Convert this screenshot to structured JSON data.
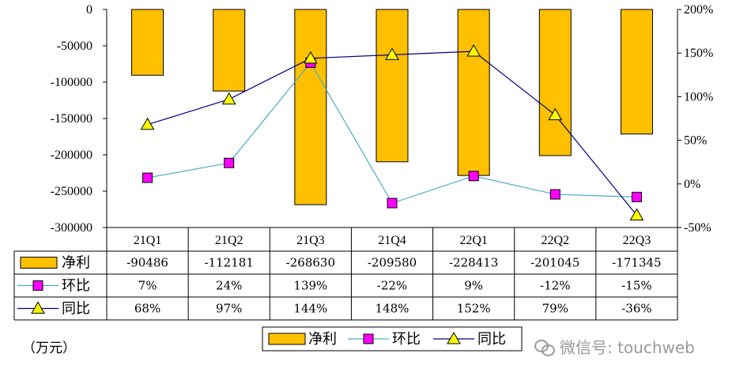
{
  "chart_data": {
    "type": "bar",
    "categories": [
      "21Q1",
      "21Q2",
      "21Q3",
      "21Q4",
      "22Q1",
      "22Q2",
      "22Q3"
    ],
    "series": [
      {
        "name": "净利",
        "kind": "bar",
        "axis": "left",
        "color": "#FFC000",
        "values": [
          -90486,
          -112181,
          -268630,
          -209580,
          -228413,
          -201045,
          -171345
        ],
        "labels": [
          "-90486",
          "-112181",
          "-268630",
          "-209580",
          "-228413",
          "-201045",
          "-171345"
        ]
      },
      {
        "name": "环比",
        "kind": "line",
        "axis": "right",
        "color": "#4BACC6",
        "marker": "square",
        "marker_color": "#FF00FF",
        "values": [
          7,
          24,
          139,
          -22,
          9,
          -12,
          -15
        ],
        "labels": [
          "7%",
          "24%",
          "139%",
          "-22%",
          "9%",
          "-12%",
          "-15%"
        ]
      },
      {
        "name": "同比",
        "kind": "line",
        "axis": "right",
        "color": "#000080",
        "marker": "triangle",
        "marker_color": "#FFFF00",
        "values": [
          68,
          97,
          144,
          148,
          152,
          79,
          -36
        ],
        "labels": [
          "68%",
          "97%",
          "144%",
          "148%",
          "152%",
          "79%",
          "-36%"
        ]
      }
    ],
    "yleft": {
      "min": -300000,
      "max": 0,
      "step": 50000,
      "ticks": [
        "0",
        "-50000",
        "-100000",
        "-150000",
        "-200000",
        "-250000",
        "-300000"
      ]
    },
    "yright": {
      "min": -50,
      "max": 200,
      "step": 50,
      "ticks": [
        "200%",
        "150%",
        "100%",
        "50%",
        "0%",
        "-50%"
      ]
    },
    "legend_position": "bottom",
    "grid": false
  },
  "unit_label": "（万元）",
  "watermark": "微信号: touchweb"
}
